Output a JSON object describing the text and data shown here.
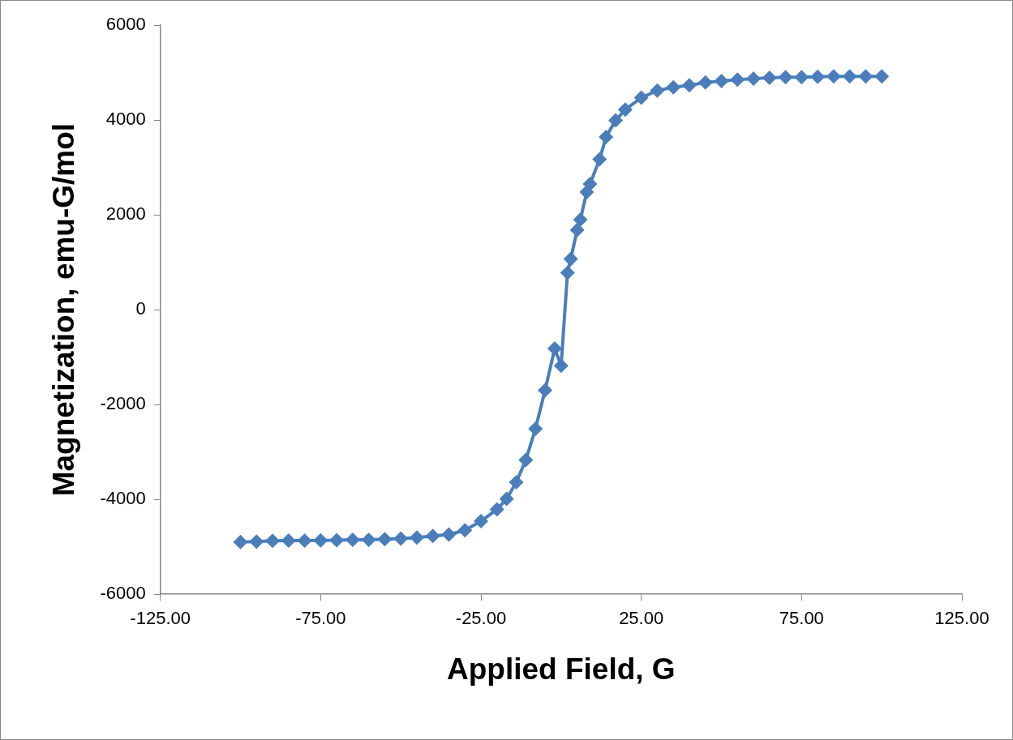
{
  "chart_data": {
    "type": "line",
    "xlabel": "Applied Field, G",
    "ylabel": "Magnetization, emu-G/mol",
    "x": [
      -100,
      -95,
      -90,
      -85,
      -80,
      -75,
      -70,
      -65,
      -60,
      -55,
      -50,
      -45,
      -40,
      -35,
      -30,
      -25,
      -20,
      -17,
      -14,
      -11,
      -8,
      -5,
      -2,
      0,
      2,
      3,
      5,
      6,
      8,
      9,
      12,
      14,
      17,
      20,
      25,
      30,
      35,
      40,
      45,
      50,
      55,
      60,
      65,
      70,
      75,
      80,
      85,
      90,
      95,
      100
    ],
    "series": [
      {
        "color": "#4a7ebb",
        "values": [
          -4900,
          -4890,
          -4875,
          -4870,
          -4870,
          -4865,
          -4860,
          -4850,
          -4850,
          -4840,
          -4825,
          -4805,
          -4770,
          -4740,
          -4650,
          -4460,
          -4210,
          -3990,
          -3640,
          -3170,
          -2510,
          -1700,
          -820,
          -1180,
          780,
          1070,
          1680,
          1900,
          2480,
          2650,
          3170,
          3640,
          3990,
          4220,
          4470,
          4620,
          4690,
          4730,
          4790,
          4820,
          4850,
          4870,
          4890,
          4900,
          4900,
          4910,
          4920,
          4920,
          4920,
          4920
        ]
      }
    ],
    "xlim": [
      -125,
      125
    ],
    "xticks": [
      {
        "value": -125,
        "label": "-125.00"
      },
      {
        "value": -75,
        "label": "-75.00"
      },
      {
        "value": -25,
        "label": "-25.00"
      },
      {
        "value": 25,
        "label": "25.00"
      },
      {
        "value": 75,
        "label": "75.00"
      },
      {
        "value": 125,
        "label": "125.00"
      }
    ],
    "ylim": [
      -6000,
      6000
    ],
    "yticks": [
      -6000,
      -4000,
      -2000,
      0,
      2000,
      4000,
      6000
    ],
    "grid": false,
    "legend": false,
    "marker": "diamond",
    "line_style": "solid"
  }
}
